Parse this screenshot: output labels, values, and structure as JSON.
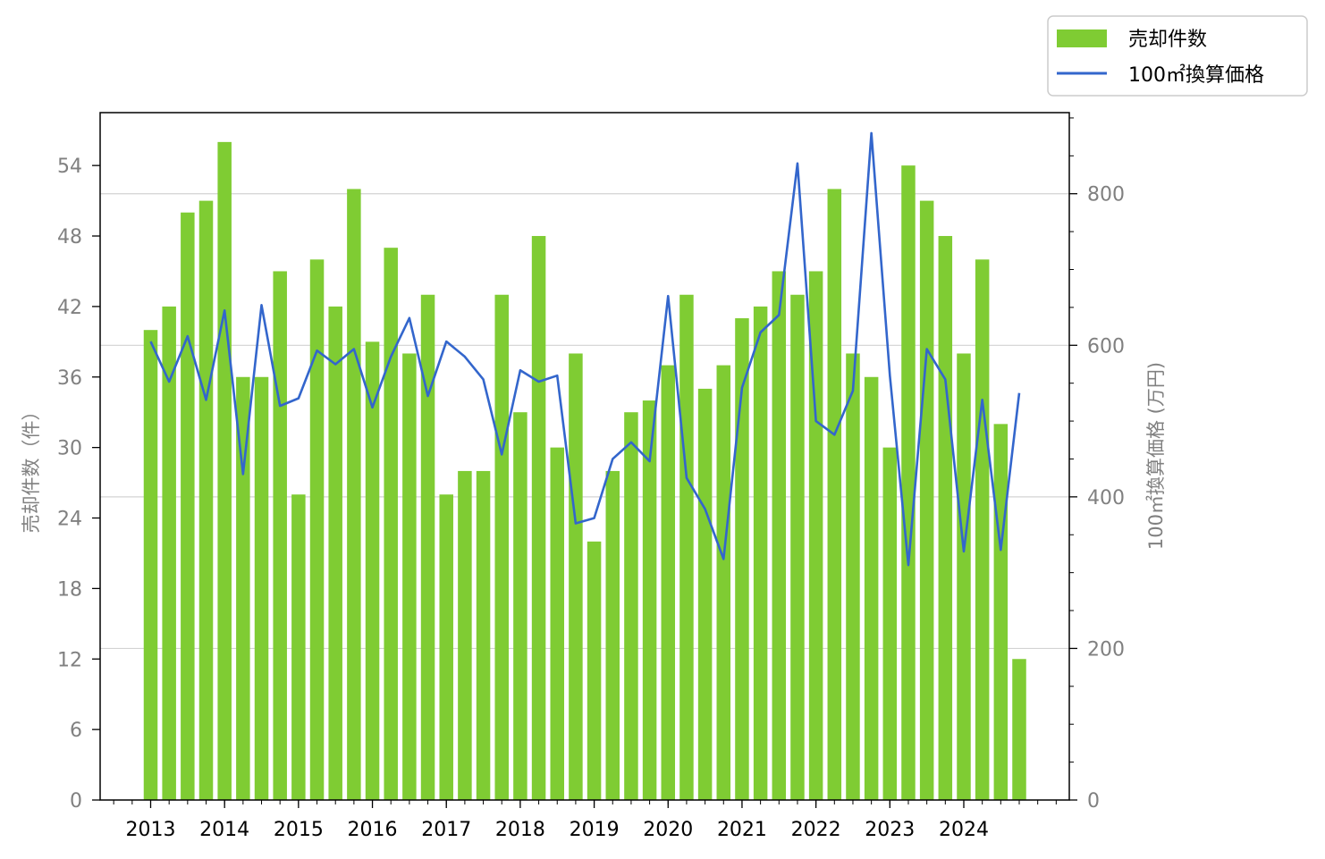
{
  "chart_data": {
    "type": "bar",
    "colors": {
      "bars": "#7fcc33",
      "line": "#3366cc",
      "grid": "#d3d3d3",
      "axis_text": "#808080"
    },
    "legend": {
      "placement": "top-right",
      "bar_label": "売却件数",
      "line_label": "100㎡換算価格"
    },
    "y_left": {
      "label": "売却件数（件）",
      "ylim": [
        0,
        58.5
      ],
      "ticks": [
        0,
        6,
        12,
        18,
        24,
        30,
        36,
        42,
        48,
        54
      ]
    },
    "y_right": {
      "label": "100㎡換算価格 (万円)",
      "ylim": [
        0,
        907
      ],
      "ticks": [
        0,
        200,
        400,
        600,
        800
      ]
    },
    "x": {
      "year_labels": [
        "2013",
        "2014",
        "2015",
        "2016",
        "2017",
        "2018",
        "2019",
        "2020",
        "2021",
        "2022",
        "2023",
        "2024"
      ],
      "first_year": 2013
    },
    "series": [
      {
        "name": "売却件数",
        "type": "bar",
        "axis": "left",
        "values": [
          40,
          42,
          50,
          51,
          56,
          36,
          36,
          45,
          26,
          46,
          42,
          52,
          39,
          47,
          38,
          43,
          26,
          28,
          28,
          43,
          33,
          48,
          30,
          38,
          22,
          28,
          33,
          34,
          37,
          43,
          35,
          37,
          41,
          42,
          45,
          43,
          45,
          52,
          38,
          36,
          30,
          54,
          51,
          48,
          38,
          46,
          32,
          12
        ]
      },
      {
        "name": "100㎡換算価格",
        "type": "line",
        "axis": "right",
        "values": [
          605,
          552,
          612,
          528,
          646,
          430,
          653,
          520,
          530,
          593,
          575,
          595,
          518,
          585,
          636,
          533,
          605,
          585,
          555,
          456,
          567,
          552,
          560,
          365,
          372,
          450,
          472,
          447,
          665,
          425,
          384,
          318,
          544,
          617,
          640,
          840,
          500,
          482,
          540,
          880,
          560,
          310,
          595,
          555,
          328,
          528,
          330,
          537
        ]
      }
    ]
  }
}
